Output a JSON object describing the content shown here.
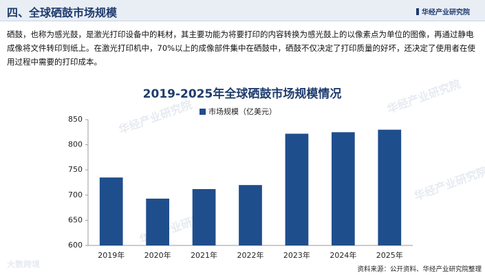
{
  "header": {
    "title": "四、全球硒鼓市场规模",
    "logo": "华经产业研究院"
  },
  "paragraph": "硒鼓，也称为感光鼓，是激光打印设备中的耗材，其主要功能为将要打印的内容转换为感光鼓上的以像素点为单位的图像，再通过静电成像将文件转印到纸上。在激光打印机中，70%以上的成像部件集中在硒鼓中，硒鼓不仅决定了打印质量的好坏，还决定了使用者在使用过程中需要的打印成本。",
  "watermarks": [
    "华经产业研究院",
    "大数跨境"
  ],
  "source": "资料来源：公开资料、华经产业研究院整理",
  "chart_data": {
    "type": "bar",
    "title": "2019-2025年全球硒鼓市场规模情况",
    "categories": [
      "2019年",
      "2020年",
      "2021年",
      "2022年",
      "2023年",
      "2024年",
      "2025年"
    ],
    "series": [
      {
        "name": "市场规模（亿美元）",
        "color": "#1f4e8c",
        "values": [
          735,
          693,
          712,
          720,
          822,
          825,
          830
        ]
      }
    ],
    "ylim": [
      600,
      850
    ],
    "yticks": [
      600,
      650,
      700,
      750,
      800,
      850
    ],
    "grid": false
  }
}
